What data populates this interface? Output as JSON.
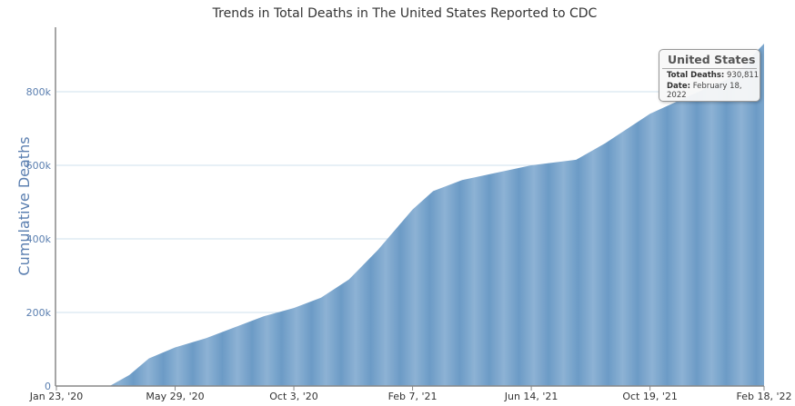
{
  "chart_data": {
    "type": "area",
    "title": "Trends in Total Deaths in The United States Reported to CDC",
    "xlabel": "",
    "ylabel": "Cumulative Deaths",
    "xlim": [
      "2020-01-23",
      "2022-02-18"
    ],
    "ylim": [
      0,
      950000
    ],
    "x_ticks": [
      {
        "date": "2020-01-23",
        "label": "Jan 23, '20"
      },
      {
        "date": "2020-05-29",
        "label": "May 29, '20"
      },
      {
        "date": "2020-10-03",
        "label": "Oct 3, '20"
      },
      {
        "date": "2021-02-07",
        "label": "Feb 7, '21"
      },
      {
        "date": "2021-06-14",
        "label": "Jun 14, '21"
      },
      {
        "date": "2021-10-19",
        "label": "Oct 19, '21"
      },
      {
        "date": "2022-02-18",
        "label": "Feb 18, '22"
      }
    ],
    "y_ticks": [
      {
        "value": 0,
        "label": "0"
      },
      {
        "value": 200000,
        "label": "200k"
      },
      {
        "value": 400000,
        "label": "400k"
      },
      {
        "value": 600000,
        "label": "600k"
      },
      {
        "value": 800000,
        "label": "800k"
      }
    ],
    "grid": true,
    "color": "#7ea7cc",
    "series": [
      {
        "x": [
          "2020-01-23",
          "2020-03-20",
          "2020-04-10",
          "2020-05-01",
          "2020-05-29",
          "2020-07-01",
          "2020-08-01",
          "2020-09-01",
          "2020-10-03",
          "2020-11-01",
          "2020-12-01",
          "2021-01-01",
          "2021-02-07",
          "2021-03-01",
          "2021-04-01",
          "2021-06-14",
          "2021-08-01",
          "2021-09-01",
          "2021-10-19",
          "2021-12-01",
          "2022-01-15",
          "2022-02-18"
        ],
        "y": [
          0,
          0,
          30000,
          75000,
          105000,
          130000,
          160000,
          190000,
          212000,
          240000,
          290000,
          370000,
          480000,
          530000,
          560000,
          600000,
          615000,
          660000,
          740000,
          790000,
          840000,
          930811
        ]
      }
    ]
  },
  "tooltip": {
    "title": "United States",
    "deaths_label": "Total Deaths:",
    "deaths_value": "930,811",
    "date_label": "Date:",
    "date_value": "February 18, 2022"
  }
}
